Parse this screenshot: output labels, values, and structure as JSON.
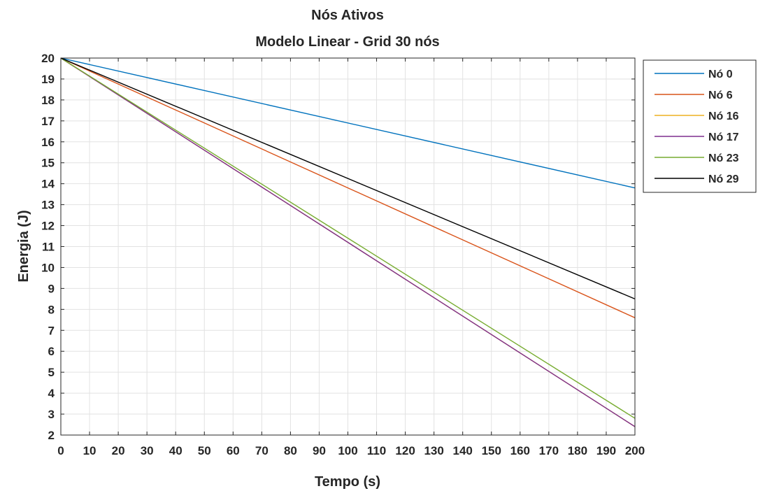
{
  "chart_data": {
    "type": "line",
    "title": "Nós Ativos",
    "subtitle": "Modelo Linear - Grid 30 nós",
    "xlabel": "Tempo (s)",
    "ylabel": "Energia (J)",
    "xlim": [
      0,
      200
    ],
    "ylim": [
      2,
      20
    ],
    "xticks": [
      "0",
      "10",
      "20",
      "30",
      "40",
      "50",
      "60",
      "70",
      "80",
      "90",
      "100",
      "110",
      "120",
      "130",
      "140",
      "150",
      "160",
      "170",
      "180",
      "190",
      "200"
    ],
    "yticks": [
      "2",
      "3",
      "4",
      "5",
      "6",
      "7",
      "8",
      "9",
      "10",
      "11",
      "12",
      "13",
      "14",
      "15",
      "16",
      "17",
      "18",
      "19",
      "20"
    ],
    "grid": true,
    "legend_position": "outside-top-right",
    "series": [
      {
        "name": "Nó 0",
        "color": "#0072bd",
        "x": [
          0,
          200
        ],
        "y": [
          20,
          13.8
        ]
      },
      {
        "name": "Nó 6",
        "color": "#d95319",
        "x": [
          0,
          200
        ],
        "y": [
          20,
          7.6
        ]
      },
      {
        "name": "Nó 16",
        "color": "#edb120",
        "x": [
          0,
          200
        ],
        "y": [
          20,
          2.4
        ]
      },
      {
        "name": "Nó 17",
        "color": "#7e2f8e",
        "x": [
          0,
          200
        ],
        "y": [
          20,
          2.4
        ]
      },
      {
        "name": "Nó 23",
        "color": "#77ac30",
        "x": [
          0,
          200
        ],
        "y": [
          20,
          2.8
        ]
      },
      {
        "name": "Nó 29",
        "color": "#000000",
        "x": [
          0,
          200
        ],
        "y": [
          20,
          8.5
        ]
      }
    ]
  }
}
